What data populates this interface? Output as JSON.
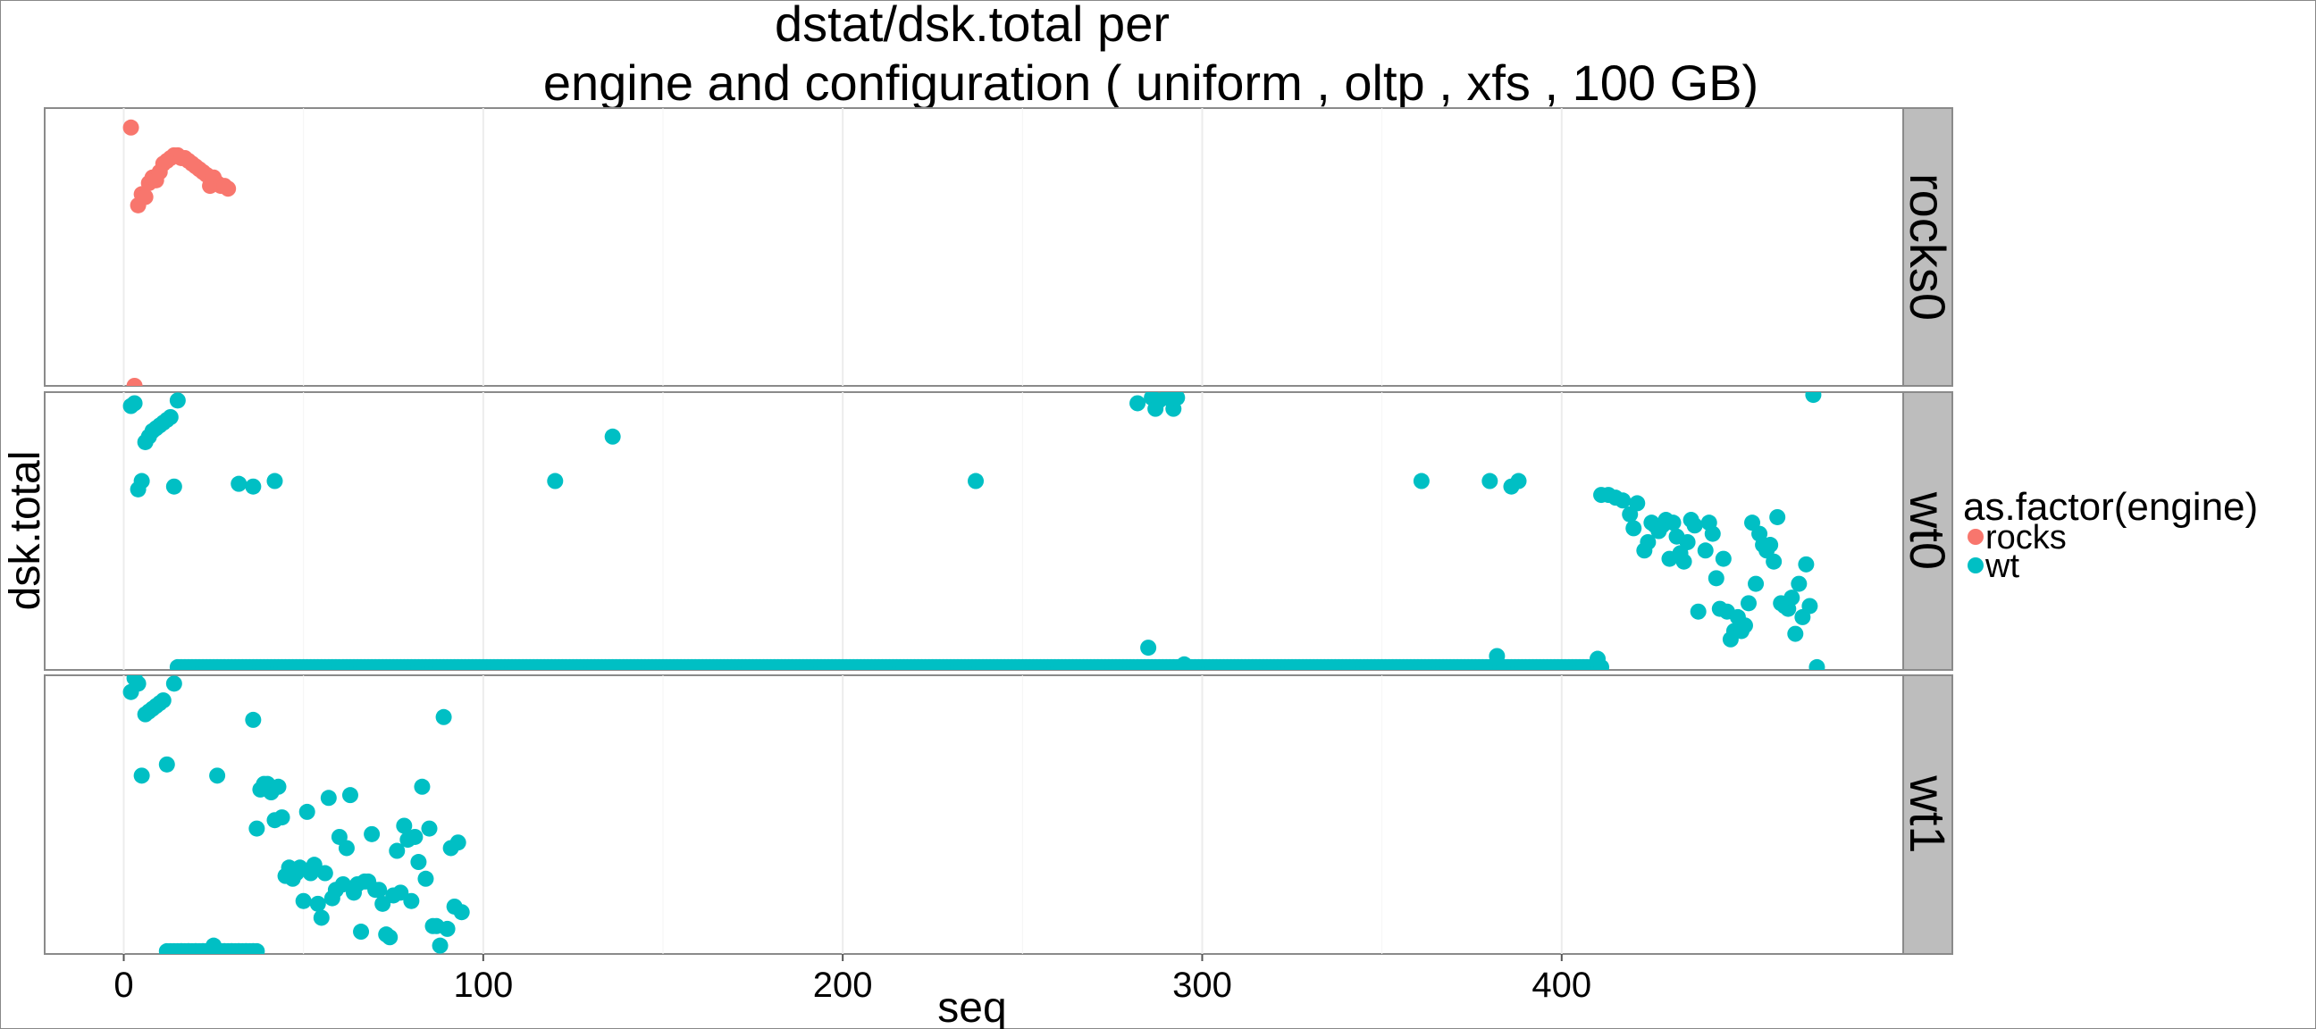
{
  "chart_data": {
    "type": "scatter",
    "title_line1": "dstat/dsk.total per",
    "title_line2": "engine and configuration ( uniform , oltp , xfs ,  100 GB)",
    "xlabel": "seq",
    "ylabel": "dsk.total",
    "xlim": [
      -22,
      495
    ],
    "x_ticks": [
      0,
      100,
      200,
      300,
      400
    ],
    "grid": true,
    "y_tick_labels_shown": false,
    "legend": {
      "title": "as.factor(engine)",
      "placement": "right",
      "entries": [
        {
          "label": "rocks",
          "color": "#F8766D"
        },
        {
          "label": "wt",
          "color": "#00BFC4"
        }
      ]
    },
    "panels": [
      {
        "label": "rocks0",
        "ylim": [
          0,
          100
        ],
        "series": "rocks",
        "points": [
          [
            2,
            93
          ],
          [
            3,
            0
          ],
          [
            4,
            65
          ],
          [
            5,
            69
          ],
          [
            6,
            68
          ],
          [
            7,
            73
          ],
          [
            8,
            75
          ],
          [
            9,
            74
          ],
          [
            10,
            77
          ],
          [
            11,
            80
          ],
          [
            12,
            81
          ],
          [
            13,
            82
          ],
          [
            14,
            83
          ],
          [
            15,
            83
          ],
          [
            16,
            82
          ],
          [
            17,
            82
          ],
          [
            18,
            81
          ],
          [
            19,
            80
          ],
          [
            20,
            79
          ],
          [
            21,
            78
          ],
          [
            22,
            77
          ],
          [
            23,
            76
          ],
          [
            24,
            72
          ],
          [
            25,
            75
          ],
          [
            26,
            73
          ],
          [
            27,
            72
          ],
          [
            28,
            72
          ],
          [
            29,
            71
          ]
        ]
      },
      {
        "label": "wt0",
        "ylim": [
          0,
          100
        ],
        "series": "wt",
        "points": [
          [
            2,
            95
          ],
          [
            3,
            96
          ],
          [
            4,
            65
          ],
          [
            5,
            68
          ],
          [
            6,
            82
          ],
          [
            7,
            84
          ],
          [
            8,
            86
          ],
          [
            9,
            87
          ],
          [
            10,
            88
          ],
          [
            11,
            89
          ],
          [
            12,
            90
          ],
          [
            13,
            91
          ],
          [
            14,
            66
          ],
          [
            15,
            97
          ],
          [
            32,
            67
          ],
          [
            36,
            66
          ],
          [
            42,
            68
          ],
          [
            120,
            68
          ],
          [
            136,
            84
          ],
          [
            237,
            68
          ],
          [
            282,
            96
          ],
          [
            285,
            8
          ],
          [
            286,
            98
          ],
          [
            287,
            94
          ],
          [
            288,
            97
          ],
          [
            290,
            98
          ],
          [
            292,
            94
          ],
          [
            293,
            98
          ],
          [
            295,
            2
          ],
          [
            361,
            68
          ],
          [
            380,
            68
          ],
          [
            382,
            5
          ],
          [
            386,
            66
          ],
          [
            388,
            68
          ],
          [
            410,
            4
          ],
          [
            411,
            63
          ],
          [
            413,
            63
          ],
          [
            415,
            62
          ],
          [
            417,
            61
          ],
          [
            419,
            56
          ],
          [
            420,
            51
          ],
          [
            421,
            60
          ],
          [
            423,
            43
          ],
          [
            424,
            46
          ],
          [
            425,
            53
          ],
          [
            426,
            52
          ],
          [
            427,
            50
          ],
          [
            428,
            52
          ],
          [
            429,
            54
          ],
          [
            430,
            40
          ],
          [
            431,
            53
          ],
          [
            432,
            48
          ],
          [
            433,
            42
          ],
          [
            434,
            39
          ],
          [
            435,
            46
          ],
          [
            436,
            54
          ],
          [
            437,
            52
          ],
          [
            438,
            21
          ],
          [
            440,
            43
          ],
          [
            441,
            53
          ],
          [
            442,
            49
          ],
          [
            443,
            33
          ],
          [
            444,
            22
          ],
          [
            445,
            40
          ],
          [
            446,
            21
          ],
          [
            447,
            11
          ],
          [
            448,
            14
          ],
          [
            449,
            19
          ],
          [
            450,
            14
          ],
          [
            451,
            16
          ],
          [
            452,
            24
          ],
          [
            453,
            53
          ],
          [
            454,
            31
          ],
          [
            455,
            49
          ],
          [
            456,
            45
          ],
          [
            457,
            43
          ],
          [
            458,
            45
          ],
          [
            459,
            39
          ],
          [
            460,
            55
          ],
          [
            461,
            24
          ],
          [
            462,
            23
          ],
          [
            463,
            22
          ],
          [
            464,
            26
          ],
          [
            465,
            13
          ],
          [
            466,
            31
          ],
          [
            467,
            19
          ],
          [
            468,
            38
          ],
          [
            469,
            23
          ],
          [
            470,
            99
          ],
          [
            471,
            1
          ]
        ]
      },
      {
        "label": "wt1",
        "ylim": [
          0,
          100
        ],
        "series": "wt",
        "points": [
          [
            2,
            94
          ],
          [
            3,
            99
          ],
          [
            4,
            97
          ],
          [
            5,
            64
          ],
          [
            6,
            86
          ],
          [
            7,
            87
          ],
          [
            8,
            88
          ],
          [
            9,
            89
          ],
          [
            10,
            90
          ],
          [
            11,
            91
          ],
          [
            12,
            68
          ],
          [
            14,
            97
          ],
          [
            26,
            64
          ],
          [
            36,
            84
          ],
          [
            37,
            45
          ],
          [
            38,
            59
          ],
          [
            39,
            61
          ],
          [
            40,
            61
          ],
          [
            41,
            58
          ],
          [
            42,
            48
          ],
          [
            43,
            60
          ],
          [
            44,
            49
          ],
          [
            45,
            28
          ],
          [
            46,
            31
          ],
          [
            47,
            27
          ],
          [
            48,
            29
          ],
          [
            49,
            31
          ],
          [
            50,
            19
          ],
          [
            51,
            51
          ],
          [
            52,
            29
          ],
          [
            53,
            32
          ],
          [
            54,
            18
          ],
          [
            55,
            13
          ],
          [
            56,
            29
          ],
          [
            57,
            56
          ],
          [
            58,
            20
          ],
          [
            59,
            23
          ],
          [
            60,
            42
          ],
          [
            61,
            25
          ],
          [
            62,
            38
          ],
          [
            63,
            57
          ],
          [
            64,
            22
          ],
          [
            65,
            25
          ],
          [
            66,
            8
          ],
          [
            67,
            26
          ],
          [
            68,
            26
          ],
          [
            69,
            43
          ],
          [
            70,
            23
          ],
          [
            71,
            23
          ],
          [
            72,
            18
          ],
          [
            73,
            7
          ],
          [
            74,
            6
          ],
          [
            75,
            21
          ],
          [
            76,
            37
          ],
          [
            77,
            22
          ],
          [
            78,
            46
          ],
          [
            79,
            41
          ],
          [
            80,
            19
          ],
          [
            81,
            42
          ],
          [
            82,
            33
          ],
          [
            83,
            60
          ],
          [
            84,
            27
          ],
          [
            85,
            45
          ],
          [
            86,
            10
          ],
          [
            87,
            10
          ],
          [
            88,
            3
          ],
          [
            89,
            85
          ],
          [
            90,
            9
          ],
          [
            91,
            38
          ],
          [
            92,
            17
          ],
          [
            93,
            40
          ],
          [
            94,
            15
          ],
          [
            16,
            1
          ],
          [
            18,
            1
          ],
          [
            20,
            1
          ],
          [
            22,
            1
          ],
          [
            24,
            1
          ],
          [
            25,
            3
          ],
          [
            26,
            1
          ],
          [
            28,
            1
          ],
          [
            30,
            1
          ],
          [
            32,
            1
          ],
          [
            34,
            1
          ],
          [
            36,
            1
          ]
        ]
      }
    ],
    "baselines": [
      {
        "panel": "wt0",
        "from": 15,
        "to": 411,
        "value": 1
      },
      {
        "panel": "wt1",
        "from": 12,
        "to": 37,
        "value": 1
      }
    ]
  }
}
